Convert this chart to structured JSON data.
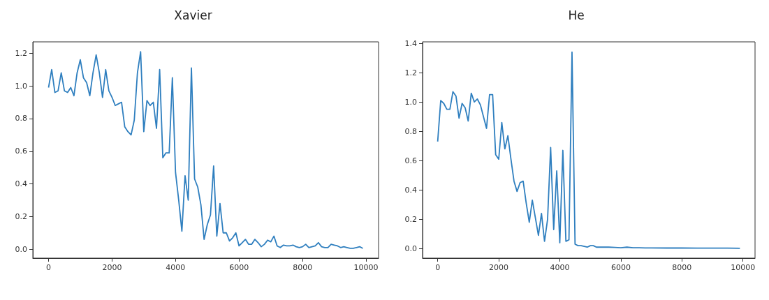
{
  "chart_data": [
    {
      "type": "line",
      "title": "Xavier",
      "color": "#2f7fbf",
      "grid": false,
      "x": [
        0,
        100,
        200,
        300,
        400,
        500,
        600,
        700,
        800,
        900,
        1000,
        1100,
        1200,
        1300,
        1400,
        1500,
        1600,
        1700,
        1800,
        1900,
        2000,
        2100,
        2200,
        2300,
        2400,
        2500,
        2600,
        2700,
        2800,
        2900,
        3000,
        3100,
        3200,
        3300,
        3400,
        3500,
        3600,
        3700,
        3800,
        3900,
        4000,
        4100,
        4200,
        4300,
        4400,
        4500,
        4600,
        4700,
        4800,
        4900,
        5000,
        5100,
        5200,
        5300,
        5400,
        5500,
        5600,
        5700,
        5800,
        5900,
        6000,
        6100,
        6200,
        6300,
        6400,
        6500,
        6600,
        6700,
        6800,
        6900,
        7000,
        7100,
        7200,
        7300,
        7400,
        7500,
        7600,
        7700,
        7800,
        7900,
        8000,
        8100,
        8200,
        8300,
        8400,
        8500,
        8600,
        8700,
        8800,
        8900,
        9000,
        9100,
        9200,
        9300,
        9400,
        9500,
        9600,
        9700,
        9800,
        9900
      ],
      "values": [
        0.99,
        1.1,
        0.96,
        0.97,
        1.08,
        0.97,
        0.96,
        0.99,
        0.94,
        1.08,
        1.16,
        1.05,
        1.02,
        0.94,
        1.08,
        1.19,
        1.08,
        0.93,
        1.1,
        0.97,
        0.93,
        0.88,
        0.89,
        0.9,
        0.75,
        0.72,
        0.7,
        0.79,
        1.08,
        1.21,
        0.72,
        0.91,
        0.88,
        0.9,
        0.74,
        1.1,
        0.56,
        0.59,
        0.59,
        1.05,
        0.47,
        0.3,
        0.11,
        0.45,
        0.3,
        1.11,
        0.43,
        0.38,
        0.27,
        0.06,
        0.15,
        0.21,
        0.51,
        0.08,
        0.28,
        0.1,
        0.1,
        0.05,
        0.07,
        0.1,
        0.02,
        0.04,
        0.06,
        0.03,
        0.03,
        0.06,
        0.04,
        0.015,
        0.03,
        0.055,
        0.045,
        0.08,
        0.02,
        0.01,
        0.025,
        0.02,
        0.02,
        0.025,
        0.015,
        0.01,
        0.015,
        0.03,
        0.01,
        0.015,
        0.02,
        0.04,
        0.015,
        0.01,
        0.01,
        0.03,
        0.025,
        0.02,
        0.01,
        0.015,
        0.01,
        0.005,
        0.005,
        0.01,
        0.015,
        0.005
      ],
      "xlim": [
        -495,
        10395
      ],
      "xticks": [
        0,
        2000,
        4000,
        6000,
        8000,
        10000
      ],
      "ylim": [
        -0.055,
        1.27
      ],
      "yticks": [
        {
          "value": 0,
          "label": "0.0"
        },
        {
          "value": 0.2,
          "label": "0.2"
        },
        {
          "value": 0.4,
          "label": "0.4"
        },
        {
          "value": 0.6,
          "label": "0.6"
        },
        {
          "value": 0.8,
          "label": "0.8"
        },
        {
          "value": 1,
          "label": "1.0"
        },
        {
          "value": 1.2,
          "label": "1.2"
        }
      ]
    },
    {
      "type": "line",
      "title": "He",
      "color": "#2f7fbf",
      "grid": false,
      "x": [
        0,
        100,
        200,
        300,
        400,
        500,
        600,
        700,
        800,
        900,
        1000,
        1100,
        1200,
        1300,
        1400,
        1500,
        1600,
        1700,
        1800,
        1900,
        2000,
        2100,
        2200,
        2300,
        2400,
        2500,
        2600,
        2700,
        2800,
        2900,
        3000,
        3100,
        3200,
        3300,
        3400,
        3500,
        3600,
        3700,
        3800,
        3900,
        4000,
        4100,
        4200,
        4300,
        4400,
        4500,
        4600,
        4700,
        4800,
        4900,
        5000,
        5100,
        5200,
        5400,
        5600,
        5800,
        6000,
        6200,
        6400,
        6600,
        6800,
        7000,
        7500,
        8000,
        8500,
        9000,
        9500,
        9900
      ],
      "values": [
        0.73,
        1.01,
        0.99,
        0.95,
        0.95,
        1.07,
        1.04,
        0.89,
        0.99,
        0.96,
        0.87,
        1.06,
        1.0,
        1.02,
        0.98,
        0.9,
        0.82,
        1.05,
        1.05,
        0.64,
        0.61,
        0.86,
        0.68,
        0.77,
        0.61,
        0.46,
        0.39,
        0.45,
        0.46,
        0.31,
        0.18,
        0.33,
        0.21,
        0.09,
        0.24,
        0.05,
        0.2,
        0.69,
        0.13,
        0.53,
        0.04,
        0.67,
        0.05,
        0.06,
        1.34,
        0.03,
        0.02,
        0.02,
        0.015,
        0.01,
        0.02,
        0.02,
        0.01,
        0.01,
        0.01,
        0.008,
        0.006,
        0.01,
        0.006,
        0.006,
        0.005,
        0.005,
        0.004,
        0.004,
        0.003,
        0.003,
        0.003,
        0.002
      ],
      "xlim": [
        -495,
        10395
      ],
      "xticks": [
        0,
        2000,
        4000,
        6000,
        8000,
        10000
      ],
      "ylim": [
        -0.065,
        1.41
      ],
      "yticks": [
        {
          "value": 0,
          "label": "0.0"
        },
        {
          "value": 0.2,
          "label": "0.2"
        },
        {
          "value": 0.4,
          "label": "0.4"
        },
        {
          "value": 0.6,
          "label": "0.6"
        },
        {
          "value": 0.8,
          "label": "0.8"
        },
        {
          "value": 1,
          "label": "1.0"
        },
        {
          "value": 1.2,
          "label": "1.2"
        },
        {
          "value": 1.4,
          "label": "1.4"
        }
      ]
    }
  ]
}
